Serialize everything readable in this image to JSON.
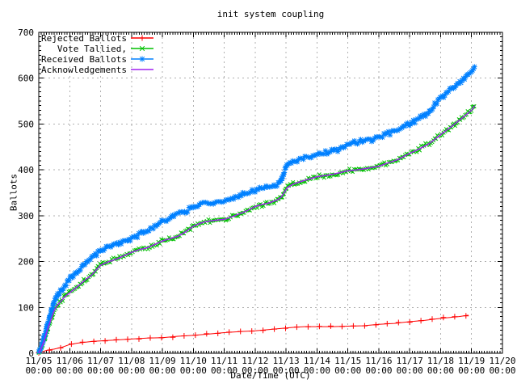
{
  "chart_data": {
    "type": "line",
    "title": "init system coupling",
    "xlabel": "Date/Time (UTC)",
    "ylabel": "Ballots",
    "grid": true,
    "legend_position": "top-left",
    "background_color": "#ffffff",
    "grid_color": "#b0b0b0",
    "frame_color": "#000000",
    "x_axis": {
      "unit": "days since 11/05 00:00 UTC",
      "min": 0,
      "max": 15,
      "minor_ticks_per_day": 12,
      "major_tick_labels": [
        {
          "date": "11/05",
          "time": "00:00"
        },
        {
          "date": "11/06",
          "time": "00:00"
        },
        {
          "date": "11/07",
          "time": "00:00"
        },
        {
          "date": "11/08",
          "time": "00:00"
        },
        {
          "date": "11/09",
          "time": "00:00"
        },
        {
          "date": "11/10",
          "time": "00:00"
        },
        {
          "date": "11/11",
          "time": "00:00"
        },
        {
          "date": "11/12",
          "time": "00:00"
        },
        {
          "date": "11/13",
          "time": "00:00"
        },
        {
          "date": "11/14",
          "time": "00:00"
        },
        {
          "date": "11/15",
          "time": "00:00"
        },
        {
          "date": "11/16",
          "time": "00:00"
        },
        {
          "date": "11/17",
          "time": "00:00"
        },
        {
          "date": "11/18",
          "time": "00:00"
        },
        {
          "date": "11/19",
          "time": "00:00"
        },
        {
          "date": "11/20",
          "time": "00:00"
        }
      ]
    },
    "y_axis": {
      "min": 0,
      "max": 700,
      "tick_step": 100,
      "minor_tick_step": 10,
      "ticks": [
        0,
        100,
        200,
        300,
        400,
        500,
        600,
        700
      ]
    },
    "series": [
      {
        "name": "Rejected Ballots",
        "color": "#ff0000",
        "marker": "plus",
        "points": [
          [
            0,
            0
          ],
          [
            0.15,
            4
          ],
          [
            0.3,
            7
          ],
          [
            0.5,
            9
          ],
          [
            0.75,
            13
          ],
          [
            1,
            19
          ],
          [
            1.25,
            22
          ],
          [
            1.5,
            24
          ],
          [
            1.75,
            26
          ],
          [
            2,
            27
          ],
          [
            2.5,
            29
          ],
          [
            3,
            31
          ],
          [
            3.5,
            33
          ],
          [
            4,
            34
          ],
          [
            4.5,
            37
          ],
          [
            5,
            39
          ],
          [
            5.5,
            42
          ],
          [
            6,
            45
          ],
          [
            6.5,
            47
          ],
          [
            7,
            49
          ],
          [
            7.5,
            52
          ],
          [
            8,
            55
          ],
          [
            8.3,
            57
          ],
          [
            8.6,
            58
          ],
          [
            9.5,
            58
          ],
          [
            10,
            59
          ],
          [
            10.5,
            60
          ],
          [
            11,
            63
          ],
          [
            11.5,
            65
          ],
          [
            12,
            69
          ],
          [
            12.5,
            72
          ],
          [
            13,
            76
          ],
          [
            13.3,
            78
          ],
          [
            13.6,
            80
          ],
          [
            13.9,
            83
          ]
        ]
      },
      {
        "name": "Vote Tallied,",
        "color": "#00c000",
        "marker": "cross",
        "points": [
          [
            0,
            0
          ],
          [
            0.06,
            8
          ],
          [
            0.12,
            18
          ],
          [
            0.19,
            30
          ],
          [
            0.25,
            45
          ],
          [
            0.33,
            61
          ],
          [
            0.42,
            78
          ],
          [
            0.5,
            93
          ],
          [
            0.58,
            103
          ],
          [
            0.67,
            110
          ],
          [
            0.75,
            116
          ],
          [
            0.85,
            124
          ],
          [
            1,
            132
          ],
          [
            1.15,
            140
          ],
          [
            1.3,
            148
          ],
          [
            1.5,
            160
          ],
          [
            1.7,
            170
          ],
          [
            1.85,
            181
          ],
          [
            2,
            192
          ],
          [
            2.2,
            198
          ],
          [
            2.4,
            203
          ],
          [
            2.6,
            208
          ],
          [
            2.8,
            214
          ],
          [
            3,
            220
          ],
          [
            3.25,
            226
          ],
          [
            3.5,
            230
          ],
          [
            3.75,
            237
          ],
          [
            4,
            245
          ],
          [
            4.25,
            250
          ],
          [
            4.5,
            255
          ],
          [
            4.75,
            265
          ],
          [
            5,
            277
          ],
          [
            5.2,
            283
          ],
          [
            5.4,
            287
          ],
          [
            5.7,
            290
          ],
          [
            6,
            292
          ],
          [
            6.3,
            299
          ],
          [
            6.6,
            307
          ],
          [
            6.8,
            313
          ],
          [
            7,
            320
          ],
          [
            7.2,
            324
          ],
          [
            7.45,
            328
          ],
          [
            7.7,
            334
          ],
          [
            7.85,
            341
          ],
          [
            7.95,
            352
          ],
          [
            8.05,
            362
          ],
          [
            8.2,
            368
          ],
          [
            8.4,
            373
          ],
          [
            8.6,
            377
          ],
          [
            8.8,
            381
          ],
          [
            9,
            385
          ],
          [
            9.2,
            387
          ],
          [
            9.5,
            390
          ],
          [
            9.75,
            394
          ],
          [
            10,
            398
          ],
          [
            10.3,
            400
          ],
          [
            10.6,
            403
          ],
          [
            11,
            408
          ],
          [
            11.3,
            415
          ],
          [
            11.6,
            422
          ],
          [
            11.8,
            429
          ],
          [
            12,
            436
          ],
          [
            12.2,
            442
          ],
          [
            12.4,
            449
          ],
          [
            12.6,
            456
          ],
          [
            12.8,
            466
          ],
          [
            13,
            477
          ],
          [
            13.2,
            487
          ],
          [
            13.4,
            497
          ],
          [
            13.6,
            508
          ],
          [
            13.8,
            519
          ],
          [
            14,
            530
          ],
          [
            14.1,
            540
          ]
        ]
      },
      {
        "name": "Received Ballots",
        "color": "#0080ff",
        "marker": "star",
        "points": [
          [
            0,
            0
          ],
          [
            0.06,
            10
          ],
          [
            0.12,
            22
          ],
          [
            0.19,
            38
          ],
          [
            0.25,
            57
          ],
          [
            0.33,
            76
          ],
          [
            0.42,
            95
          ],
          [
            0.5,
            112
          ],
          [
            0.58,
            124
          ],
          [
            0.67,
            133
          ],
          [
            0.75,
            140
          ],
          [
            0.85,
            149
          ],
          [
            1,
            163
          ],
          [
            1.15,
            174
          ],
          [
            1.3,
            183
          ],
          [
            1.5,
            196
          ],
          [
            1.7,
            206
          ],
          [
            1.85,
            214
          ],
          [
            2,
            222
          ],
          [
            2.2,
            229
          ],
          [
            2.4,
            234
          ],
          [
            2.6,
            239
          ],
          [
            2.8,
            245
          ],
          [
            3,
            250
          ],
          [
            3.25,
            259
          ],
          [
            3.5,
            267
          ],
          [
            3.75,
            277
          ],
          [
            4,
            286
          ],
          [
            4.2,
            291
          ],
          [
            4.35,
            301
          ],
          [
            4.6,
            306
          ],
          [
            4.8,
            311
          ],
          [
            5,
            318
          ],
          [
            5.2,
            324
          ],
          [
            5.4,
            328
          ],
          [
            5.7,
            329
          ],
          [
            6,
            331
          ],
          [
            6.3,
            339
          ],
          [
            6.6,
            346
          ],
          [
            6.8,
            351
          ],
          [
            7,
            355
          ],
          [
            7.2,
            359
          ],
          [
            7.45,
            363
          ],
          [
            7.7,
            366
          ],
          [
            7.82,
            374
          ],
          [
            7.95,
            398
          ],
          [
            8.05,
            410
          ],
          [
            8.2,
            417
          ],
          [
            8.4,
            423
          ],
          [
            8.6,
            427
          ],
          [
            8.8,
            430
          ],
          [
            9,
            433
          ],
          [
            9.2,
            436
          ],
          [
            9.5,
            440
          ],
          [
            9.75,
            447
          ],
          [
            10,
            454
          ],
          [
            10.3,
            460
          ],
          [
            10.6,
            464
          ],
          [
            11,
            472
          ],
          [
            11.3,
            479
          ],
          [
            11.6,
            486
          ],
          [
            11.8,
            493
          ],
          [
            12,
            500
          ],
          [
            12.2,
            508
          ],
          [
            12.4,
            516
          ],
          [
            12.6,
            526
          ],
          [
            12.8,
            541
          ],
          [
            13,
            556
          ],
          [
            13.2,
            568
          ],
          [
            13.4,
            579
          ],
          [
            13.6,
            590
          ],
          [
            13.8,
            602
          ],
          [
            14,
            615
          ],
          [
            14.1,
            624
          ]
        ]
      },
      {
        "name": "Acknowledgements",
        "color": "#a020f0",
        "marker": "none",
        "points": [
          [
            0,
            0
          ],
          [
            0.06,
            8
          ],
          [
            0.12,
            18
          ],
          [
            0.19,
            30
          ],
          [
            0.25,
            45
          ],
          [
            0.33,
            61
          ],
          [
            0.42,
            78
          ],
          [
            0.5,
            93
          ],
          [
            0.58,
            103
          ],
          [
            0.67,
            110
          ],
          [
            0.75,
            116
          ],
          [
            0.85,
            124
          ],
          [
            1,
            132
          ],
          [
            1.15,
            140
          ],
          [
            1.3,
            148
          ],
          [
            1.5,
            160
          ],
          [
            1.7,
            170
          ],
          [
            1.85,
            181
          ],
          [
            2,
            192
          ],
          [
            2.2,
            198
          ],
          [
            2.4,
            203
          ],
          [
            2.6,
            208
          ],
          [
            2.8,
            214
          ],
          [
            3,
            220
          ],
          [
            3.25,
            226
          ],
          [
            3.5,
            230
          ],
          [
            3.75,
            237
          ],
          [
            4,
            245
          ],
          [
            4.25,
            250
          ],
          [
            4.5,
            255
          ],
          [
            4.75,
            265
          ],
          [
            5,
            277
          ],
          [
            5.2,
            283
          ],
          [
            5.4,
            287
          ],
          [
            5.7,
            290
          ],
          [
            6,
            292
          ],
          [
            6.3,
            299
          ],
          [
            6.6,
            307
          ],
          [
            6.8,
            313
          ],
          [
            7,
            320
          ],
          [
            7.2,
            324
          ],
          [
            7.45,
            328
          ],
          [
            7.7,
            334
          ],
          [
            7.85,
            341
          ],
          [
            7.95,
            352
          ],
          [
            8.05,
            362
          ],
          [
            8.2,
            368
          ],
          [
            8.4,
            373
          ],
          [
            8.6,
            377
          ],
          [
            8.8,
            381
          ],
          [
            9,
            385
          ],
          [
            9.2,
            387
          ],
          [
            9.5,
            390
          ],
          [
            9.75,
            394
          ],
          [
            10,
            398
          ],
          [
            10.3,
            400
          ],
          [
            10.6,
            403
          ],
          [
            11,
            408
          ],
          [
            11.3,
            415
          ],
          [
            11.6,
            422
          ],
          [
            11.8,
            429
          ],
          [
            12,
            436
          ],
          [
            12.2,
            442
          ],
          [
            12.4,
            449
          ],
          [
            12.6,
            456
          ],
          [
            12.8,
            466
          ],
          [
            13,
            477
          ],
          [
            13.2,
            487
          ],
          [
            13.4,
            497
          ],
          [
            13.6,
            508
          ],
          [
            13.8,
            519
          ],
          [
            14,
            530
          ],
          [
            14.1,
            540
          ]
        ]
      }
    ]
  }
}
